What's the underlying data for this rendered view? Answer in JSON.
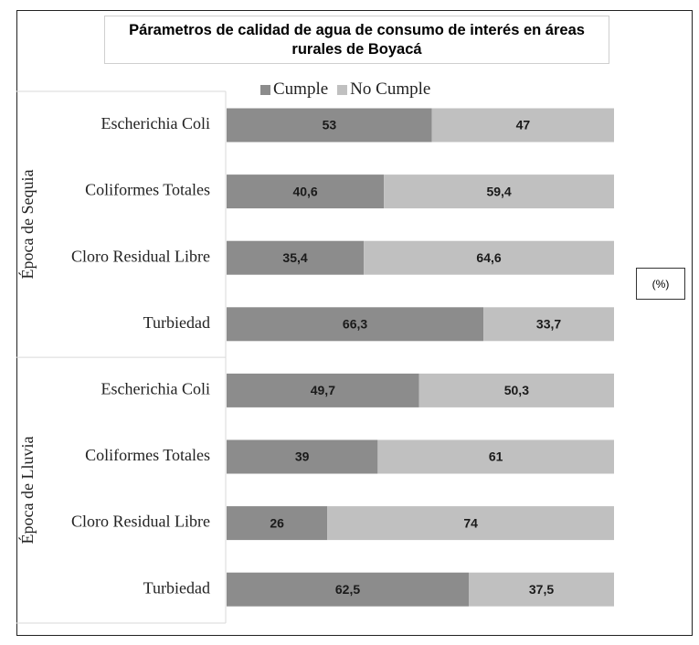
{
  "chart_data": {
    "type": "bar",
    "orientation": "horizontal",
    "stacked": true,
    "title": "Párametros de calidad de agua de consumo de interés en áreas rurales de Boyacá",
    "unit_label": "(%)",
    "groups": [
      {
        "name": "Época de Sequia",
        "categories": [
          "Escherichia Coli",
          "Coliformes Totales",
          "Cloro Residual Libre",
          "Turbiedad"
        ]
      },
      {
        "name": "Época de Lluvia",
        "categories": [
          "Escherichia Coli",
          "Coliformes Totales",
          "Cloro Residual Libre",
          "Turbiedad"
        ]
      }
    ],
    "series": [
      {
        "name": "Cumple",
        "color": "#8c8c8c",
        "values": [
          53,
          40.6,
          35.4,
          66.3,
          49.7,
          39,
          26,
          62.5
        ],
        "labels": [
          "53",
          "40,6",
          "35,4",
          "66,3",
          "49,7",
          "39",
          "26",
          "62,5"
        ]
      },
      {
        "name": "No Cumple",
        "color": "#c0c0c0",
        "values": [
          47,
          59.4,
          64.6,
          33.7,
          50.3,
          61,
          74,
          37.5
        ],
        "labels": [
          "47",
          "59,4",
          "64,6",
          "33,7",
          "50,3",
          "61",
          "74",
          "37,5"
        ]
      }
    ],
    "xlim": [
      0,
      100
    ],
    "legend_position": "top",
    "grid": false
  }
}
